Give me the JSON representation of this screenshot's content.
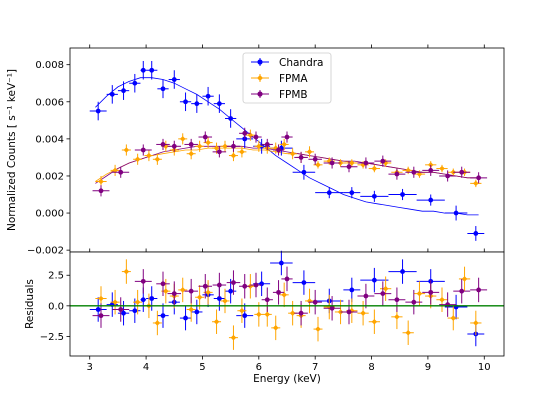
{
  "chart_data": [
    {
      "type": "scatter",
      "title": "",
      "xlabel": "",
      "ylabel": "Normalized Counts [ s⁻¹ keV⁻¹]",
      "xlim": [
        2.65,
        10.35
      ],
      "ylim": [
        -0.0021,
        0.0089
      ],
      "xticks": [
        3,
        4,
        5,
        6,
        7,
        8,
        9,
        10
      ],
      "yticks": [
        -0.002,
        0.0,
        0.002,
        0.004,
        0.006,
        0.008
      ],
      "ytick_labels": [
        "−0.002",
        "0.000",
        "0.002",
        "0.004",
        "0.006",
        "0.008"
      ],
      "legend": {
        "placement": "top-center",
        "entries": [
          "Chandra",
          "FPMA",
          "FPMB"
        ]
      },
      "series": [
        {
          "name": "Chandra",
          "color": "#0000ff",
          "marker": "circle",
          "x": [
            3.15,
            3.4,
            3.6,
            3.8,
            3.95,
            4.1,
            4.3,
            4.5,
            4.7,
            4.9,
            5.1,
            5.3,
            5.5,
            5.75,
            6.05,
            6.4,
            6.8,
            7.25,
            7.65,
            8.05,
            8.55,
            9.05,
            9.5,
            9.85
          ],
          "y": [
            0.0055,
            0.0064,
            0.0066,
            0.007,
            0.0077,
            0.0077,
            0.0067,
            0.0072,
            0.006,
            0.0059,
            0.0063,
            0.0059,
            0.0051,
            0.004,
            0.0036,
            0.0035,
            0.0022,
            0.0011,
            0.0011,
            0.0009,
            0.001,
            0.0007,
            0.0,
            -0.0011
          ],
          "xerr": [
            0.15,
            0.1,
            0.1,
            0.1,
            0.05,
            0.1,
            0.1,
            0.1,
            0.1,
            0.1,
            0.1,
            0.1,
            0.1,
            0.15,
            0.15,
            0.2,
            0.2,
            0.25,
            0.15,
            0.25,
            0.25,
            0.25,
            0.2,
            0.15
          ],
          "yerr": [
            0.0005,
            0.0005,
            0.0005,
            0.0005,
            0.0005,
            0.0005,
            0.0005,
            0.0005,
            0.0005,
            0.0005,
            0.0005,
            0.0005,
            0.0005,
            0.0005,
            0.0004,
            0.0004,
            0.0004,
            0.0003,
            0.0003,
            0.0003,
            0.0003,
            0.0003,
            0.0004,
            0.0004
          ]
        },
        {
          "name": "FPMA",
          "color": "#ffa500",
          "marker": "diamond",
          "x": [
            3.2,
            3.45,
            3.65,
            3.85,
            4.05,
            4.2,
            4.35,
            4.5,
            4.65,
            4.8,
            4.95,
            5.1,
            5.25,
            5.4,
            5.55,
            5.7,
            5.85,
            6.0,
            6.15,
            6.3,
            6.45,
            6.6,
            6.75,
            6.9,
            7.05,
            7.25,
            7.45,
            7.65,
            7.85,
            8.05,
            8.25,
            8.45,
            8.65,
            8.85,
            9.05,
            9.25,
            9.45,
            9.65,
            9.85
          ],
          "y": [
            0.0017,
            0.0023,
            0.0034,
            0.0029,
            0.0031,
            0.0029,
            0.0036,
            0.0034,
            0.004,
            0.0032,
            0.0036,
            0.0038,
            0.0035,
            0.0036,
            0.0031,
            0.0033,
            0.0042,
            0.0036,
            0.0035,
            0.0035,
            0.0037,
            0.0032,
            0.003,
            0.0033,
            0.0026,
            0.0028,
            0.0027,
            0.0027,
            0.0026,
            0.0024,
            0.0027,
            0.0022,
            0.0023,
            0.0021,
            0.0026,
            0.0024,
            0.0022,
            0.0022,
            0.0016
          ],
          "xerr": [
            0.1,
            0.08,
            0.08,
            0.08,
            0.08,
            0.08,
            0.08,
            0.08,
            0.08,
            0.08,
            0.08,
            0.08,
            0.08,
            0.08,
            0.08,
            0.08,
            0.08,
            0.08,
            0.08,
            0.08,
            0.08,
            0.08,
            0.08,
            0.08,
            0.08,
            0.1,
            0.1,
            0.1,
            0.1,
            0.1,
            0.1,
            0.1,
            0.1,
            0.1,
            0.1,
            0.1,
            0.1,
            0.1,
            0.1
          ],
          "yerr": [
            0.0003,
            0.0003,
            0.0003,
            0.0003,
            0.0003,
            0.0003,
            0.0003,
            0.0003,
            0.0003,
            0.0003,
            0.0003,
            0.0003,
            0.0003,
            0.0003,
            0.0003,
            0.0003,
            0.0003,
            0.0003,
            0.0003,
            0.0003,
            0.0003,
            0.0003,
            0.0003,
            0.0003,
            0.0002,
            0.0002,
            0.0002,
            0.0002,
            0.0002,
            0.0002,
            0.0002,
            0.0002,
            0.0002,
            0.0002,
            0.0002,
            0.0002,
            0.0002,
            0.0002,
            0.0002
          ]
        },
        {
          "name": "FPMB",
          "color": "#800080",
          "marker": "circle",
          "x": [
            3.2,
            3.55,
            3.95,
            4.3,
            4.5,
            4.8,
            5.05,
            5.3,
            5.55,
            5.75,
            5.95,
            6.15,
            6.35,
            6.5,
            6.75,
            7.0,
            7.3,
            7.6,
            7.9,
            8.2,
            8.45,
            8.75,
            9.05,
            9.35,
            9.6,
            9.9
          ],
          "y": [
            0.0012,
            0.0022,
            0.0034,
            0.0037,
            0.0036,
            0.0037,
            0.0041,
            0.0033,
            0.0036,
            0.0043,
            0.0041,
            0.0037,
            0.0034,
            0.0041,
            0.003,
            0.0029,
            0.0027,
            0.0025,
            0.0027,
            0.0028,
            0.0021,
            0.0022,
            0.0023,
            0.002,
            0.0022,
            0.0019
          ],
          "xerr": [
            0.15,
            0.15,
            0.15,
            0.12,
            0.12,
            0.12,
            0.12,
            0.12,
            0.12,
            0.1,
            0.1,
            0.1,
            0.1,
            0.1,
            0.12,
            0.12,
            0.15,
            0.15,
            0.15,
            0.15,
            0.15,
            0.15,
            0.15,
            0.15,
            0.15,
            0.15
          ],
          "yerr": [
            0.0003,
            0.0003,
            0.0003,
            0.0003,
            0.0003,
            0.0003,
            0.0003,
            0.0003,
            0.0003,
            0.0003,
            0.0003,
            0.0003,
            0.0003,
            0.0003,
            0.0003,
            0.0003,
            0.0003,
            0.0003,
            0.0003,
            0.0003,
            0.0003,
            0.0003,
            0.0003,
            0.0003,
            0.0003,
            0.0003
          ]
        }
      ],
      "model_curves": [
        {
          "color": "#0000ff",
          "x": [
            3.1,
            3.3,
            3.5,
            3.7,
            3.9,
            4.1,
            4.3,
            4.5,
            4.7,
            4.9,
            5.1,
            5.3,
            5.5,
            5.7,
            5.9,
            6.1,
            6.3,
            6.5,
            6.7,
            6.9,
            7.1,
            7.3,
            7.5,
            7.7,
            7.9,
            8.1,
            8.3,
            8.5,
            8.7,
            8.9,
            9.1,
            9.3,
            9.5,
            9.7,
            9.9
          ],
          "y": [
            0.0057,
            0.0063,
            0.0068,
            0.0071,
            0.0073,
            0.0073,
            0.0072,
            0.007,
            0.0067,
            0.0064,
            0.006,
            0.0056,
            0.0051,
            0.0046,
            0.0041,
            0.0036,
            0.0031,
            0.0027,
            0.0023,
            0.0019,
            0.0016,
            0.0013,
            0.001,
            0.0008,
            0.0006,
            0.0005,
            0.0004,
            0.0003,
            0.0002,
            0.0001,
            0.0001,
            0.0,
            0.0,
            -0.0001,
            -0.0001
          ]
        },
        {
          "color": "#ffa500",
          "x": [
            3.1,
            3.3,
            3.5,
            3.7,
            3.9,
            4.1,
            4.3,
            4.5,
            4.7,
            4.9,
            5.1,
            5.3,
            5.5,
            5.7,
            5.9,
            6.1,
            6.3,
            6.5,
            6.7,
            6.9,
            7.1,
            7.3,
            7.5,
            7.7,
            7.9,
            8.1,
            8.3,
            8.5,
            8.7,
            8.9,
            9.1,
            9.3,
            9.5,
            9.7,
            9.9
          ],
          "y": [
            0.0017,
            0.0021,
            0.0024,
            0.0027,
            0.0029,
            0.0031,
            0.0032,
            0.0033,
            0.0034,
            0.0034,
            0.0035,
            0.0035,
            0.0035,
            0.0035,
            0.0034,
            0.0034,
            0.0033,
            0.0032,
            0.0032,
            0.0031,
            0.003,
            0.0029,
            0.0028,
            0.0027,
            0.0027,
            0.0026,
            0.0025,
            0.0024,
            0.0023,
            0.0022,
            0.0022,
            0.0021,
            0.002,
            0.0019,
            0.0019
          ]
        },
        {
          "color": "#800080",
          "x": [
            3.1,
            3.3,
            3.5,
            3.7,
            3.9,
            4.1,
            4.3,
            4.5,
            4.7,
            4.9,
            5.1,
            5.3,
            5.5,
            5.7,
            5.9,
            6.1,
            6.3,
            6.5,
            6.7,
            6.9,
            7.1,
            7.3,
            7.5,
            7.7,
            7.9,
            8.1,
            8.3,
            8.5,
            8.7,
            8.9,
            9.1,
            9.3,
            9.5,
            9.7,
            9.9
          ],
          "y": [
            0.0016,
            0.002,
            0.0024,
            0.0027,
            0.0029,
            0.0031,
            0.0033,
            0.0034,
            0.0035,
            0.0036,
            0.0036,
            0.0036,
            0.0036,
            0.0036,
            0.0035,
            0.0035,
            0.0034,
            0.0033,
            0.0032,
            0.0031,
            0.003,
            0.0029,
            0.0028,
            0.0028,
            0.0027,
            0.0026,
            0.0025,
            0.0024,
            0.0023,
            0.0022,
            0.0022,
            0.0021,
            0.002,
            0.0019,
            0.0019
          ]
        }
      ]
    },
    {
      "type": "scatter",
      "title": "",
      "xlabel": "Energy (keV)",
      "ylabel": "Residuals",
      "xlim": [
        2.65,
        10.35
      ],
      "ylim": [
        -4.1,
        4.4
      ],
      "xticks": [
        3,
        4,
        5,
        6,
        7,
        8,
        9,
        10
      ],
      "yticks": [
        -2.5,
        0.0,
        2.5
      ],
      "ytick_labels": [
        "−2.5",
        "0.0",
        "2.5"
      ],
      "zero_line_color": "#008000",
      "series": [
        {
          "name": "Chandra",
          "color": "#0000ff",
          "x": [
            3.15,
            3.4,
            3.6,
            3.8,
            3.95,
            4.1,
            4.3,
            4.5,
            4.7,
            4.9,
            5.1,
            5.3,
            5.5,
            5.75,
            6.05,
            6.4,
            6.8,
            7.25,
            7.65,
            8.05,
            8.55,
            9.05,
            9.5,
            9.85
          ],
          "y": [
            -0.3,
            0.1,
            -0.6,
            -0.4,
            0.5,
            0.6,
            -0.8,
            0.3,
            -1.0,
            -0.5,
            0.9,
            0.6,
            1.2,
            -0.8,
            1.8,
            3.5,
            1.9,
            0.4,
            1.3,
            2.1,
            2.8,
            2.0,
            -0.1,
            -2.3
          ],
          "xerr": [
            0.15,
            0.1,
            0.1,
            0.1,
            0.05,
            0.1,
            0.1,
            0.1,
            0.1,
            0.1,
            0.1,
            0.1,
            0.1,
            0.15,
            0.15,
            0.2,
            0.2,
            0.25,
            0.15,
            0.25,
            0.25,
            0.25,
            0.2,
            0.15
          ],
          "yerr": [
            1.0,
            1.0,
            1.0,
            1.0,
            1.0,
            1.0,
            1.0,
            1.0,
            1.0,
            1.0,
            1.0,
            1.0,
            1.0,
            1.0,
            1.0,
            1.0,
            1.0,
            1.0,
            1.0,
            1.0,
            1.0,
            1.0,
            1.0,
            1.0
          ]
        },
        {
          "name": "FPMA",
          "color": "#ffa500",
          "x": [
            3.2,
            3.45,
            3.65,
            3.85,
            4.05,
            4.2,
            4.35,
            4.5,
            4.65,
            4.8,
            4.95,
            5.1,
            5.25,
            5.4,
            5.55,
            5.7,
            5.85,
            6.0,
            6.15,
            6.3,
            6.45,
            6.6,
            6.75,
            6.9,
            7.05,
            7.25,
            7.45,
            7.65,
            7.85,
            8.05,
            8.25,
            8.45,
            8.65,
            8.85,
            9.05,
            9.25,
            9.45,
            9.65,
            9.85
          ],
          "y": [
            0.6,
            0.3,
            2.8,
            0.3,
            0.0,
            -1.4,
            1.2,
            0.8,
            1.3,
            -0.3,
            0.7,
            1.1,
            -1.3,
            0.4,
            -2.6,
            -0.4,
            1.6,
            -0.7,
            -0.7,
            -1.8,
            0.9,
            -0.6,
            -0.8,
            0.4,
            -1.9,
            -0.1,
            -0.5,
            -0.4,
            -0.6,
            -1.3,
            1.4,
            -0.9,
            -2.2,
            1.0,
            0.8,
            0.5,
            -1.0,
            2.2,
            -1.4
          ],
          "xerr": [
            0.1,
            0.08,
            0.08,
            0.08,
            0.08,
            0.08,
            0.08,
            0.08,
            0.08,
            0.08,
            0.08,
            0.08,
            0.08,
            0.08,
            0.08,
            0.08,
            0.08,
            0.08,
            0.08,
            0.08,
            0.08,
            0.08,
            0.08,
            0.08,
            0.08,
            0.1,
            0.1,
            0.1,
            0.1,
            0.1,
            0.1,
            0.1,
            0.1,
            0.1,
            0.1,
            0.1,
            0.1,
            0.1,
            0.1
          ],
          "yerr": [
            1.0,
            1.0,
            1.0,
            1.0,
            1.0,
            1.0,
            1.0,
            1.0,
            1.0,
            1.0,
            1.0,
            1.0,
            1.0,
            1.0,
            1.0,
            1.0,
            1.0,
            1.0,
            1.0,
            1.0,
            1.0,
            1.0,
            1.0,
            1.0,
            1.0,
            1.0,
            1.0,
            1.0,
            1.0,
            1.0,
            1.0,
            1.0,
            1.0,
            1.0,
            1.0,
            1.0,
            1.0,
            1.0,
            1.0
          ]
        },
        {
          "name": "FPMB",
          "color": "#800080",
          "x": [
            3.2,
            3.55,
            3.95,
            4.3,
            4.5,
            4.8,
            5.05,
            5.3,
            5.55,
            5.75,
            5.95,
            6.15,
            6.35,
            6.5,
            6.75,
            7.0,
            7.3,
            7.6,
            7.9,
            8.2,
            8.45,
            8.75,
            9.05,
            9.35,
            9.6,
            9.9
          ],
          "y": [
            -0.8,
            -0.3,
            2.0,
            1.8,
            1.0,
            1.2,
            1.6,
            1.7,
            1.9,
            1.6,
            1.7,
            0.5,
            1.1,
            2.2,
            -0.6,
            0.3,
            -0.2,
            -0.5,
            0.8,
            1.0,
            0.5,
            0.3,
            1.1,
            0.1,
            1.2,
            1.3
          ],
          "xerr": [
            0.15,
            0.15,
            0.15,
            0.12,
            0.12,
            0.12,
            0.12,
            0.12,
            0.12,
            0.1,
            0.1,
            0.1,
            0.1,
            0.1,
            0.12,
            0.12,
            0.15,
            0.15,
            0.15,
            0.15,
            0.15,
            0.15,
            0.15,
            0.15,
            0.15,
            0.15
          ],
          "yerr": [
            1.0,
            1.0,
            1.0,
            1.0,
            1.0,
            1.0,
            1.0,
            1.0,
            1.0,
            1.0,
            1.0,
            1.0,
            1.0,
            1.0,
            1.0,
            1.0,
            1.0,
            1.0,
            1.0,
            1.0,
            1.0,
            1.0,
            1.0,
            1.0,
            1.0,
            1.0
          ]
        }
      ]
    }
  ]
}
